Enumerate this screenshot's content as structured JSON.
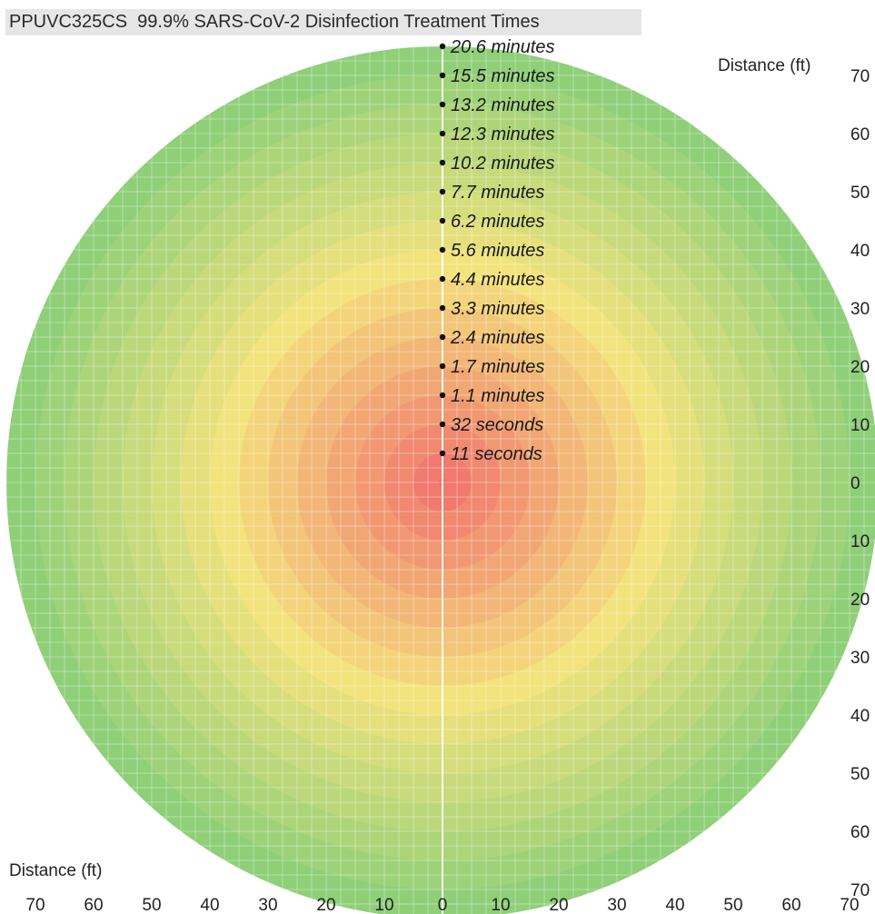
{
  "chart_data": {
    "type": "heatmap",
    "title": "PPUVC325CS  99.9% SARS-CoV-2 Disinfection Treatment Times",
    "xlabel": "Distance (ft)",
    "ylabel": "Distance (ft)",
    "xlim": [
      -70,
      70
    ],
    "ylim": [
      -70,
      70
    ],
    "x_ticks": [
      "70",
      "60",
      "50",
      "40",
      "30",
      "20",
      "10",
      "0",
      "10",
      "20",
      "30",
      "40",
      "50",
      "60",
      "70"
    ],
    "y_ticks": [
      "70",
      "60",
      "50",
      "40",
      "30",
      "20",
      "10",
      "0",
      "10",
      "20",
      "30",
      "40",
      "50",
      "60",
      "70"
    ],
    "grid": true,
    "rings": [
      {
        "distance": 5,
        "label": "11 seconds"
      },
      {
        "distance": 10,
        "label": "32 seconds"
      },
      {
        "distance": 15,
        "label": "1.1 minutes"
      },
      {
        "distance": 20,
        "label": "1.7 minutes"
      },
      {
        "distance": 25,
        "label": "2.4 minutes"
      },
      {
        "distance": 30,
        "label": "3.3 minutes"
      },
      {
        "distance": 35,
        "label": "4.4 minutes"
      },
      {
        "distance": 40,
        "label": "5.6 minutes"
      },
      {
        "distance": 45,
        "label": "6.2 minutes"
      },
      {
        "distance": 50,
        "label": "7.7 minutes"
      },
      {
        "distance": 55,
        "label": "10.2 minutes"
      },
      {
        "distance": 60,
        "label": "12.3 minutes"
      },
      {
        "distance": 65,
        "label": "13.2 minutes"
      },
      {
        "distance": 70,
        "label": "15.5 minutes"
      },
      {
        "distance": 75,
        "label": "20.6 minutes"
      }
    ],
    "colors": {
      "inner": "#f07a6e",
      "middle": "#f3e37c",
      "outer": "#8fcf78"
    }
  }
}
